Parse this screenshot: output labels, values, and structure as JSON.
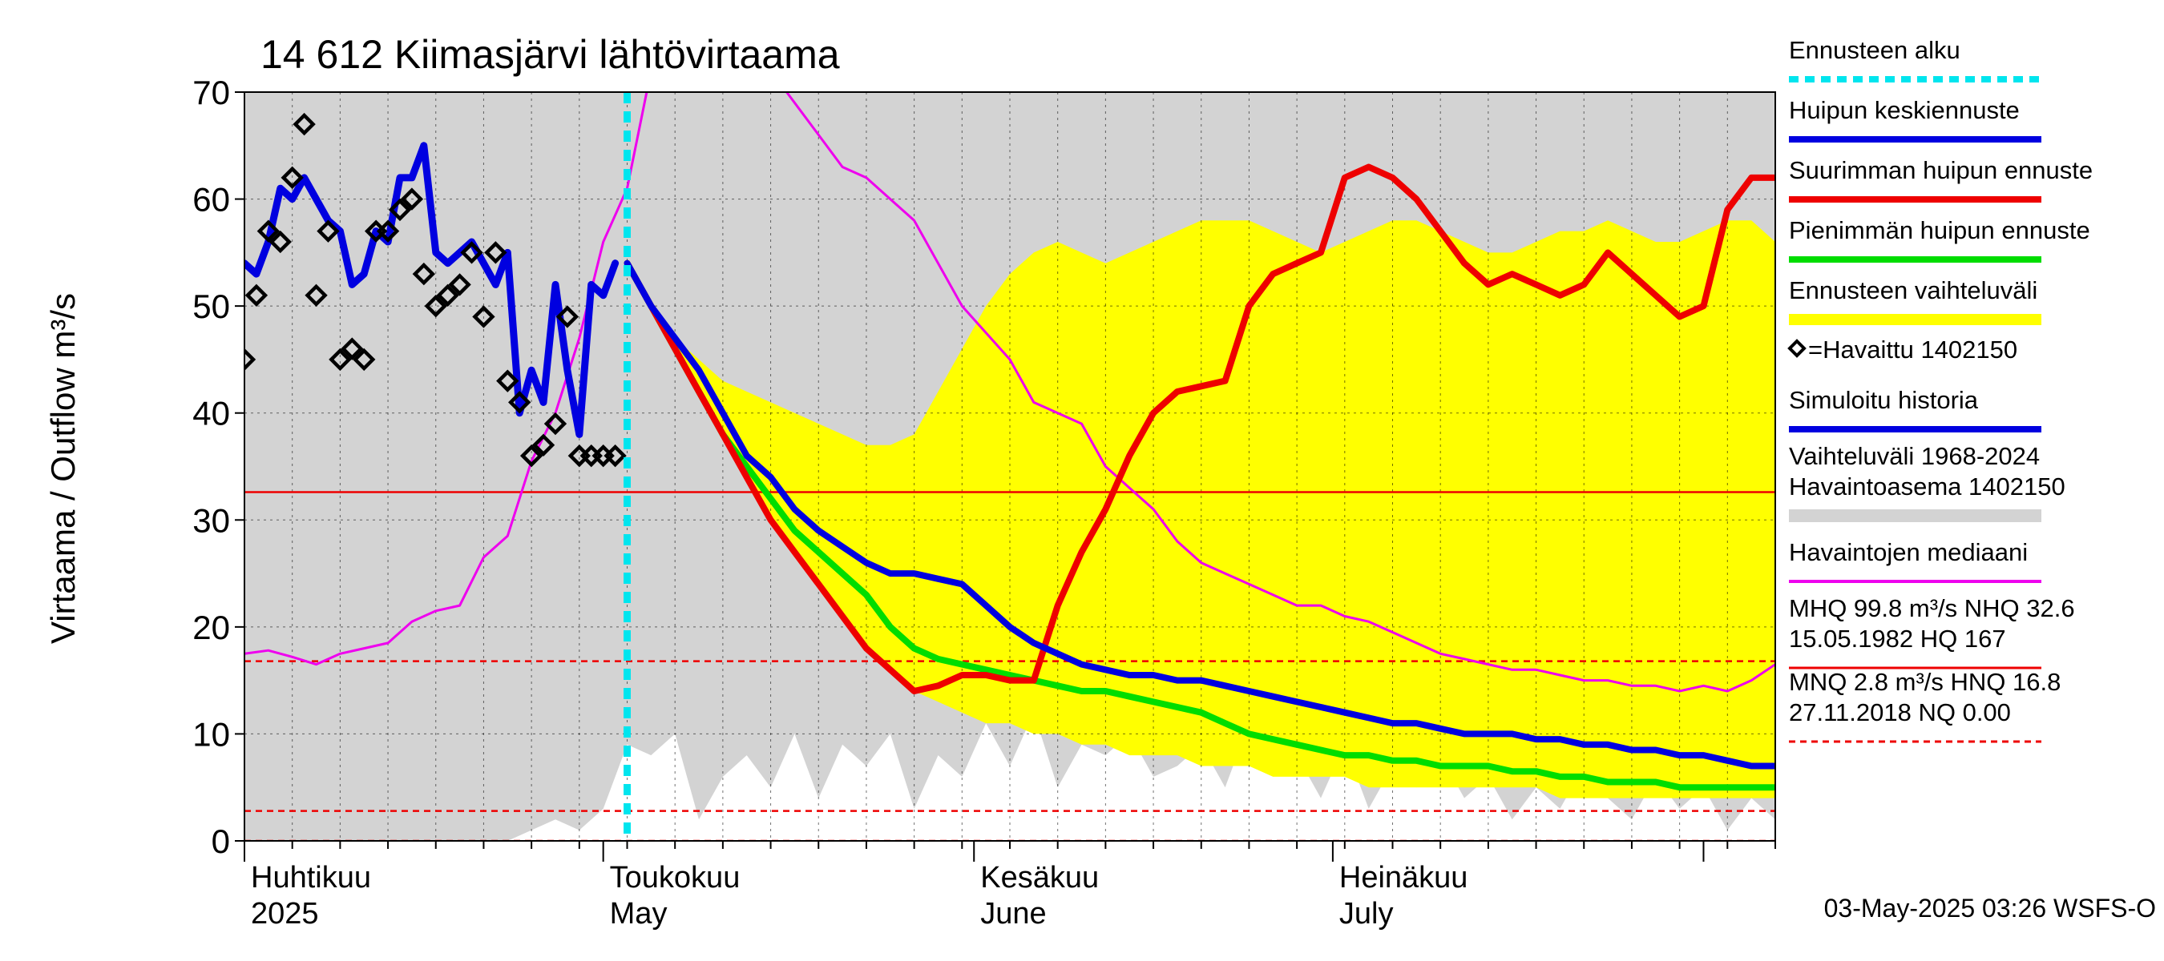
{
  "title": "14 612 Kiimasjärvi lähtövirtaama",
  "ylabel": "Virtaama / Outflow    m³/s",
  "footer": "03-May-2025 03:26 WSFS-O",
  "colors": {
    "forecast_start": "#00e5ee",
    "mean_forecast": "#0000e0",
    "max_forecast": "#ee0000",
    "min_forecast": "#00dd00",
    "forecast_range": "#ffff00",
    "observed": "#000000",
    "history": "#0000e0",
    "hist_range": "#d3d3d3",
    "median": "#ee00ee",
    "ref_line": "#ee0000"
  },
  "legend": [
    {
      "label": "Ennusteen alku",
      "style": "cyan-dashed"
    },
    {
      "label": "Huipun keskiennuste",
      "style": "blue"
    },
    {
      "label": "Suurimman huipun ennuste",
      "style": "red"
    },
    {
      "label": "Pienimmän huipun ennuste",
      "style": "green"
    },
    {
      "label": "Ennusteen vaihteluväli",
      "style": "yellow"
    },
    {
      "label": "=Havaittu 1402150",
      "style": "diamond"
    },
    {
      "label": "Simuloitu historia",
      "style": "blue"
    },
    {
      "label": "Vaihteluväli 1968-2024\n Havaintoasema 1402150",
      "style": "grey"
    },
    {
      "label": "Havaintojen mediaani",
      "style": "magenta"
    },
    {
      "label": "MHQ 99.8 m³/s NHQ 32.6\n15.05.1982 HQ  167",
      "style": "red-solid"
    },
    {
      "label": "MNQ  2.8 m³/s HNQ 16.8\n27.11.2018 NQ 0.00",
      "style": "red-dashed"
    }
  ],
  "chart_data": {
    "type": "line",
    "title": "14 612 Kiimasjärvi lähtövirtaama",
    "ylabel": "Virtaama / Outflow    m³/s",
    "ylim": [
      0,
      70
    ],
    "yticks": [
      0,
      10,
      20,
      30,
      40,
      50,
      60,
      70
    ],
    "x_unit": "day index (0 = 1 April 2025)",
    "xlim": [
      0,
      128
    ],
    "grid": true,
    "legend_position": "right",
    "month_ticks": [
      {
        "day": 0,
        "fi": "Huhtikuu",
        "en": "2025"
      },
      {
        "day": 30,
        "fi": "Toukokuu",
        "en": "May"
      },
      {
        "day": 61,
        "fi": "Kesäkuu",
        "en": "June"
      },
      {
        "day": 91,
        "fi": "Heinäkuu",
        "en": "July"
      },
      {
        "day": 122,
        "fi": "",
        "en": ""
      }
    ],
    "forecast_start_day": 32,
    "ref_lines": [
      {
        "name": "NHQ",
        "value": 32.6,
        "style": "solid"
      },
      {
        "name": "HNQ",
        "value": 16.8,
        "style": "dashed"
      },
      {
        "name": "MNQ",
        "value": 2.8,
        "style": "dashed"
      },
      {
        "name": "NQ",
        "value": 0.0,
        "style": "dashed"
      }
    ],
    "hist_range": {
      "x": [
        0,
        2,
        4,
        6,
        8,
        10,
        12,
        14,
        16,
        18,
        20,
        22,
        24,
        26,
        28,
        30,
        32,
        34,
        36,
        38,
        40,
        42,
        44,
        46,
        48,
        50,
        52,
        54,
        56,
        58,
        60,
        62,
        64,
        66,
        68,
        70,
        72,
        74,
        76,
        78,
        80,
        82,
        84,
        86,
        88,
        90,
        92,
        94,
        96,
        98,
        100,
        102,
        104,
        106,
        108,
        110,
        112,
        114,
        116,
        118,
        120,
        122,
        124,
        126,
        128
      ],
      "upper": [
        70,
        70,
        70,
        70,
        70,
        70,
        70,
        70,
        70,
        70,
        70,
        70,
        70,
        70,
        70,
        70,
        70,
        70,
        70,
        70,
        70,
        70,
        70,
        70,
        70,
        70,
        70,
        70,
        70,
        70,
        70,
        70,
        70,
        70,
        70,
        70,
        70,
        70,
        70,
        70,
        70,
        70,
        70,
        70,
        70,
        70,
        70,
        70,
        70,
        70,
        70,
        70,
        70,
        70,
        70,
        70,
        70,
        70,
        70,
        70,
        70,
        70,
        70,
        70,
        70
      ],
      "lower": [
        0,
        0,
        0,
        0,
        0,
        0,
        0,
        0,
        0,
        0,
        0,
        0,
        1,
        2,
        1,
        3,
        9,
        8,
        10,
        2,
        6,
        8,
        5,
        10,
        4,
        9,
        7,
        10,
        3,
        8,
        6,
        11,
        7,
        12,
        5,
        9,
        8,
        10,
        6,
        7,
        9,
        5,
        11,
        6,
        8,
        4,
        9,
        3,
        7,
        5,
        8,
        4,
        6,
        2,
        5,
        3,
        7,
        4,
        2,
        6,
        3,
        5,
        1,
        4,
        2
      ]
    },
    "series": [
      {
        "name": "Ennusteen vaihteluväli",
        "x": [
          32,
          34,
          36,
          38,
          40,
          42,
          44,
          46,
          48,
          50,
          52,
          54,
          56,
          58,
          60,
          62,
          64,
          66,
          68,
          70,
          72,
          74,
          76,
          78,
          80,
          82,
          84,
          86,
          88,
          90,
          92,
          94,
          96,
          98,
          100,
          102,
          104,
          106,
          108,
          110,
          112,
          114,
          116,
          118,
          120,
          122,
          124,
          126,
          128
        ],
        "upper": [
          54,
          50,
          47,
          45,
          43,
          42,
          41,
          40,
          39,
          38,
          37,
          37,
          38,
          42,
          46,
          50,
          53,
          55,
          56,
          55,
          54,
          55,
          56,
          57,
          58,
          58,
          58,
          57,
          56,
          55,
          56,
          57,
          58,
          58,
          57,
          56,
          55,
          55,
          56,
          57,
          57,
          58,
          57,
          56,
          56,
          57,
          58,
          58,
          56
        ],
        "lower": [
          54,
          50,
          46,
          42,
          38,
          34,
          30,
          27,
          24,
          21,
          18,
          16,
          14,
          13,
          12,
          11,
          11,
          10,
          10,
          9,
          9,
          8,
          8,
          8,
          7,
          7,
          7,
          6,
          6,
          6,
          6,
          5,
          5,
          5,
          5,
          5,
          5,
          5,
          5,
          4,
          4,
          4,
          4,
          4,
          4,
          4,
          4,
          4,
          4
        ]
      },
      {
        "name": "Havaintojen mediaani",
        "x": [
          0,
          2,
          4,
          6,
          8,
          10,
          12,
          14,
          16,
          18,
          20,
          22,
          24,
          26,
          28,
          30,
          32,
          34,
          36,
          40,
          44,
          48,
          50,
          52,
          56,
          60,
          64,
          66,
          68,
          70,
          72,
          74,
          76,
          78,
          80,
          82,
          84,
          86,
          88,
          90,
          92,
          94,
          96,
          98,
          100,
          102,
          104,
          106,
          108,
          110,
          112,
          114,
          116,
          118,
          120,
          122,
          124,
          126,
          128
        ],
        "values": [
          17.5,
          17.8,
          17.2,
          16.5,
          17.5,
          18.0,
          18.5,
          20.5,
          21.5,
          22.0,
          26.5,
          28.5,
          35.5,
          40.0,
          47.0,
          56.0,
          61.0,
          72.0,
          78.0,
          78.0,
          72.0,
          66.0,
          63.0,
          62.0,
          58.0,
          50.0,
          45.0,
          41.0,
          40.0,
          39.0,
          35.0,
          33.0,
          31.0,
          28.0,
          26.0,
          25.0,
          24.0,
          23.0,
          22.0,
          22.0,
          21.0,
          20.5,
          19.5,
          18.5,
          17.5,
          17.0,
          16.5,
          16.0,
          16.0,
          15.5,
          15.0,
          15.0,
          14.5,
          14.5,
          14.0,
          14.5,
          14.0,
          15.0,
          16.5
        ]
      },
      {
        "name": "Simuloitu historia",
        "x": [
          0,
          1,
          2,
          3,
          4,
          5,
          6,
          7,
          8,
          9,
          10,
          11,
          12,
          13,
          14,
          15,
          16,
          17,
          18,
          19,
          20,
          21,
          22,
          23,
          24,
          25,
          26,
          27,
          28,
          29,
          30,
          31
        ],
        "values": [
          54,
          53,
          56,
          61,
          60,
          62,
          60,
          58,
          57,
          52,
          53,
          57,
          56,
          62,
          62,
          65,
          55,
          54,
          55,
          56,
          54,
          52,
          55,
          40,
          44,
          41,
          52,
          44,
          38,
          52,
          51,
          54
        ]
      },
      {
        "name": "Huipun keskiennuste",
        "x": [
          32,
          34,
          36,
          38,
          40,
          42,
          44,
          46,
          48,
          50,
          52,
          54,
          56,
          58,
          60,
          62,
          64,
          66,
          68,
          70,
          72,
          74,
          76,
          78,
          80,
          82,
          84,
          86,
          88,
          90,
          92,
          94,
          96,
          98,
          100,
          102,
          104,
          106,
          108,
          110,
          112,
          114,
          116,
          118,
          120,
          122,
          124,
          126,
          128
        ],
        "values": [
          54,
          50,
          47,
          44,
          40,
          36,
          34,
          31,
          29,
          27.5,
          26,
          25,
          25,
          24.5,
          24,
          22,
          20,
          18.5,
          17.5,
          16.5,
          16,
          15.5,
          15.5,
          15,
          15,
          14.5,
          14,
          13.5,
          13,
          12.5,
          12,
          11.5,
          11,
          11,
          10.5,
          10,
          10,
          10,
          9.5,
          9.5,
          9,
          9,
          8.5,
          8.5,
          8,
          8,
          7.5,
          7,
          7
        ]
      },
      {
        "name": "Suurimman huipun ennuste",
        "x": [
          32,
          34,
          36,
          38,
          40,
          42,
          44,
          46,
          48,
          50,
          52,
          54,
          56,
          58,
          60,
          62,
          64,
          66,
          68,
          70,
          72,
          74,
          76,
          78,
          80,
          82,
          84,
          86,
          88,
          90,
          92,
          94,
          96,
          98,
          100,
          102,
          104,
          106,
          108,
          110,
          112,
          114,
          116,
          118,
          120,
          122,
          124,
          126,
          128
        ],
        "values": [
          54,
          50,
          46,
          42,
          38,
          34,
          30,
          27,
          24,
          21,
          18,
          16,
          14,
          14.5,
          15.5,
          15.5,
          15,
          15,
          22,
          27,
          31,
          36,
          40,
          42,
          42.5,
          43,
          50,
          53,
          54,
          55,
          62,
          63,
          62,
          60,
          57,
          54,
          52,
          53,
          52,
          51,
          52,
          55,
          53,
          51,
          49,
          50,
          59,
          62,
          62
        ]
      },
      {
        "name": "Pienimmän huipun ennuste",
        "x": [
          32,
          34,
          36,
          38,
          40,
          42,
          44,
          46,
          48,
          50,
          52,
          54,
          56,
          58,
          60,
          62,
          64,
          66,
          68,
          70,
          72,
          74,
          76,
          78,
          80,
          82,
          84,
          86,
          88,
          90,
          92,
          94,
          96,
          98,
          100,
          102,
          104,
          106,
          108,
          110,
          112,
          114,
          116,
          118,
          120,
          122,
          124,
          126,
          128
        ],
        "values": [
          54,
          50,
          46,
          42,
          38,
          35,
          32,
          29,
          27,
          25,
          23,
          20,
          18,
          17,
          16.5,
          16,
          15.5,
          15,
          14.5,
          14,
          14,
          13.5,
          13,
          12.5,
          12,
          11,
          10,
          9.5,
          9,
          8.5,
          8,
          8,
          7.5,
          7.5,
          7,
          7,
          7,
          6.5,
          6.5,
          6,
          6,
          5.5,
          5.5,
          5.5,
          5,
          5,
          5,
          5,
          5
        ]
      }
    ],
    "observed": {
      "name": "=Havaittu 1402150",
      "x": [
        0,
        1,
        2,
        3,
        4,
        5,
        6,
        7,
        8,
        9,
        10,
        11,
        12,
        13,
        14,
        15,
        16,
        17,
        18,
        19,
        20,
        21,
        22,
        23,
        24,
        25,
        26,
        27,
        28,
        29,
        30,
        31
      ],
      "values": [
        45,
        51,
        57,
        56,
        62,
        67,
        51,
        57,
        45,
        46,
        45,
        57,
        57,
        59,
        60,
        53,
        50,
        51,
        52,
        55,
        49,
        55,
        43,
        41,
        36,
        37,
        39,
        49,
        36,
        36,
        36,
        36
      ]
    }
  }
}
